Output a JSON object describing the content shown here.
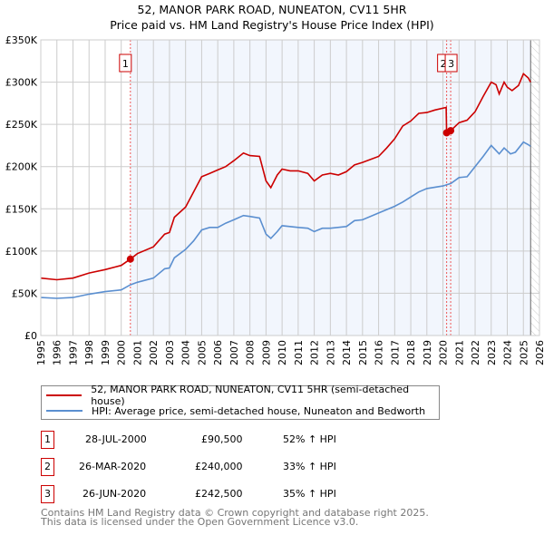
{
  "chart_data": {
    "type": "line",
    "title": "52, MANOR PARK ROAD, NUNEATON, CV11 5HR",
    "subtitle": "Price paid vs. HM Land Registry's House Price Index (HPI)",
    "xlim": [
      1995,
      2026
    ],
    "ylim": [
      0,
      350000
    ],
    "x_ticks": [
      "1995",
      "1996",
      "1997",
      "1998",
      "1999",
      "2000",
      "2001",
      "2002",
      "2003",
      "2004",
      "2005",
      "2006",
      "2007",
      "2008",
      "2009",
      "2010",
      "2011",
      "2012",
      "2013",
      "2014",
      "2015",
      "2016",
      "2017",
      "2018",
      "2019",
      "2020",
      "2021",
      "2022",
      "2023",
      "2024",
      "2025",
      "2026"
    ],
    "y_ticks": [
      {
        "v": 0,
        "label": "£0"
      },
      {
        "v": 50000,
        "label": "£50K"
      },
      {
        "v": 100000,
        "label": "£100K"
      },
      {
        "v": 150000,
        "label": "£150K"
      },
      {
        "v": 200000,
        "label": "£200K"
      },
      {
        "v": 250000,
        "label": "£250K"
      },
      {
        "v": 300000,
        "label": "£300K"
      },
      {
        "v": 350000,
        "label": "£350K"
      }
    ],
    "grid": true,
    "shaded_from": 2000.57,
    "hatched_from": 2025.45,
    "series": [
      {
        "name": "52, MANOR PARK ROAD, NUNEATON, CV11 5HR (semi-detached house)",
        "color": "#cc0000",
        "x": [
          1995,
          1996,
          1997,
          1998,
          1999,
          2000,
          2000.57,
          2001,
          2002,
          2002.7,
          2003,
          2003.3,
          2004,
          2004.5,
          2005,
          2005.5,
          2006,
          2006.5,
          2007,
          2007.6,
          2008,
          2008.6,
          2009,
          2009.3,
          2009.7,
          2010,
          2010.5,
          2011,
          2011.6,
          2012,
          2012.5,
          2013,
          2013.5,
          2014,
          2014.5,
          2015,
          2016,
          2016.5,
          2017,
          2017.5,
          2018,
          2018.5,
          2019,
          2019.5,
          2020.2,
          2020.23,
          2020.48,
          2021,
          2021.5,
          2022,
          2022.5,
          2023,
          2023.3,
          2023.5,
          2023.8,
          2024,
          2024.3,
          2024.7,
          2025,
          2025.3,
          2025.45
        ],
        "y": [
          68000,
          66000,
          68000,
          74000,
          78000,
          83000,
          90500,
          97000,
          105000,
          120000,
          122000,
          140000,
          152000,
          170000,
          188000,
          192000,
          196000,
          200000,
          207000,
          216000,
          213000,
          212000,
          183000,
          175000,
          190000,
          197000,
          195000,
          195000,
          192000,
          183000,
          190000,
          192000,
          190000,
          194000,
          202000,
          205000,
          212000,
          222000,
          233000,
          248000,
          254000,
          263000,
          264000,
          267000,
          270000,
          240000,
          242500,
          252000,
          255000,
          265000,
          283000,
          300000,
          297000,
          286000,
          300000,
          294000,
          290000,
          296000,
          310000,
          305000,
          300000
        ]
      },
      {
        "name": "HPI: Average price, semi-detached house, Nuneaton and Bedworth",
        "color": "#5b8fd0",
        "x": [
          1995,
          1996,
          1997,
          1998,
          1999,
          2000,
          2000.57,
          2001,
          2002,
          2002.7,
          2003,
          2003.3,
          2004,
          2004.5,
          2005,
          2005.5,
          2006,
          2006.5,
          2007,
          2007.6,
          2008,
          2008.6,
          2009,
          2009.3,
          2009.7,
          2010,
          2011,
          2011.6,
          2012,
          2012.5,
          2013,
          2014,
          2014.5,
          2015,
          2016,
          2017,
          2017.5,
          2018,
          2018.5,
          2019,
          2020,
          2020.5,
          2021,
          2021.5,
          2022,
          2022.5,
          2023,
          2023.5,
          2023.8,
          2024.2,
          2024.5,
          2025,
          2025.3,
          2025.45
        ],
        "y": [
          45000,
          44000,
          45000,
          49000,
          52000,
          54000,
          60000,
          63000,
          68000,
          79000,
          80000,
          92000,
          102000,
          112000,
          125000,
          128000,
          128000,
          133000,
          137000,
          142000,
          141000,
          139000,
          120000,
          115000,
          123000,
          130000,
          128000,
          127000,
          123000,
          127000,
          127000,
          129000,
          136000,
          137000,
          145000,
          153000,
          158000,
          164000,
          170000,
          174000,
          177000,
          180000,
          187000,
          188000,
          200000,
          212000,
          225000,
          215000,
          222000,
          215000,
          217000,
          229000,
          226000,
          224000
        ]
      }
    ],
    "markers": [
      {
        "id": "1",
        "x": 2000.57,
        "y": 90500
      },
      {
        "id": "2",
        "x": 2020.23,
        "y": 240000
      },
      {
        "id": "3",
        "x": 2020.48,
        "y": 242500
      }
    ]
  },
  "legend": {
    "items": [
      {
        "label": "52, MANOR PARK ROAD, NUNEATON, CV11 5HR (semi-detached house)",
        "color": "#cc0000"
      },
      {
        "label": "HPI: Average price, semi-detached house, Nuneaton and Bedworth",
        "color": "#5b8fd0"
      }
    ]
  },
  "sales": [
    {
      "num": "1",
      "date": "28-JUL-2000",
      "price": "£90,500",
      "hpi": "52% ↑ HPI"
    },
    {
      "num": "2",
      "date": "26-MAR-2020",
      "price": "£240,000",
      "hpi": "33% ↑ HPI"
    },
    {
      "num": "3",
      "date": "26-JUN-2020",
      "price": "£242,500",
      "hpi": "35% ↑ HPI"
    }
  ],
  "footer": {
    "line1": "Contains HM Land Registry data © Crown copyright and database right 2025.",
    "line2": "This data is licensed under the Open Government Licence v3.0."
  }
}
